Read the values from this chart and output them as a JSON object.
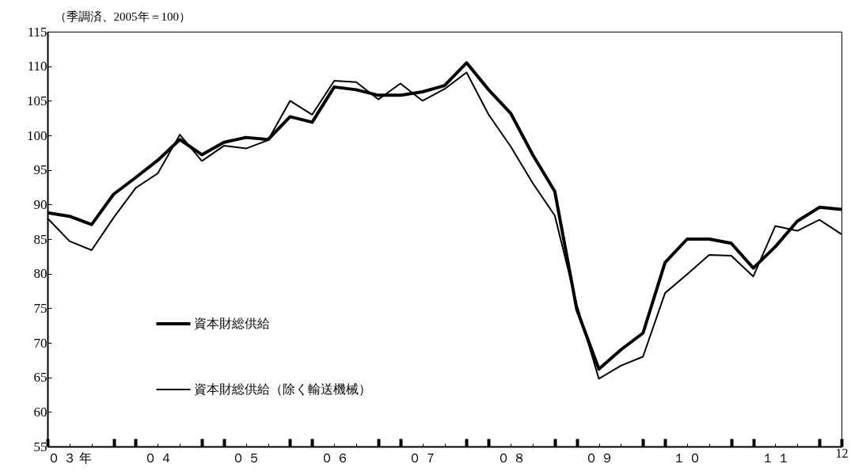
{
  "chart_data": {
    "type": "line",
    "ylabel": "（季調済、2005年＝100）",
    "categories": [
      null,
      "０ ３ 年",
      null,
      null,
      null,
      "０ ４",
      null,
      null,
      null,
      "０ ５",
      null,
      null,
      null,
      "０ ６",
      null,
      null,
      null,
      "０ ７",
      null,
      null,
      null,
      "０ ８",
      null,
      null,
      null,
      "０ ９",
      null,
      null,
      null,
      "１ ０",
      null,
      null,
      null,
      "１ １",
      null,
      null,
      "12"
    ],
    "series": [
      {
        "name": "資本財総供給",
        "color": "#000000",
        "values": [
          88.8,
          88.3,
          87.1,
          91.5,
          93.9,
          96.4,
          99.4,
          97.2,
          99.0,
          99.7,
          99.4,
          102.7,
          101.9,
          107.0,
          106.6,
          105.8,
          105.8,
          106.3,
          107.2,
          110.5,
          106.6,
          103.2,
          97.2,
          91.9,
          74.8,
          66.2,
          69.0,
          71.4,
          81.6,
          85.0,
          85.0,
          84.4,
          80.8,
          83.9,
          87.6,
          89.6,
          89.3
        ]
      },
      {
        "name": "資本財総供給（除く輸送機械）",
        "color": "#000000",
        "values": [
          88.0,
          84.7,
          83.4,
          88.1,
          92.4,
          94.5,
          100.1,
          96.3,
          98.5,
          98.1,
          99.3,
          105.0,
          103.0,
          107.9,
          107.7,
          105.2,
          107.5,
          105.0,
          106.7,
          109.1,
          103.0,
          98.4,
          93.1,
          88.4,
          75.5,
          64.8,
          66.7,
          68.0,
          77.2,
          79.9,
          82.7,
          82.6,
          79.6,
          86.9,
          86.2,
          87.8,
          85.7
        ]
      }
    ],
    "ylim": [
      55,
      115
    ],
    "yticks": [
      55,
      60,
      65,
      70,
      75,
      80,
      85,
      90,
      95,
      100,
      105,
      110,
      115
    ],
    "grid": false,
    "legend": "left",
    "marker": "none",
    "line_style": "solid"
  }
}
